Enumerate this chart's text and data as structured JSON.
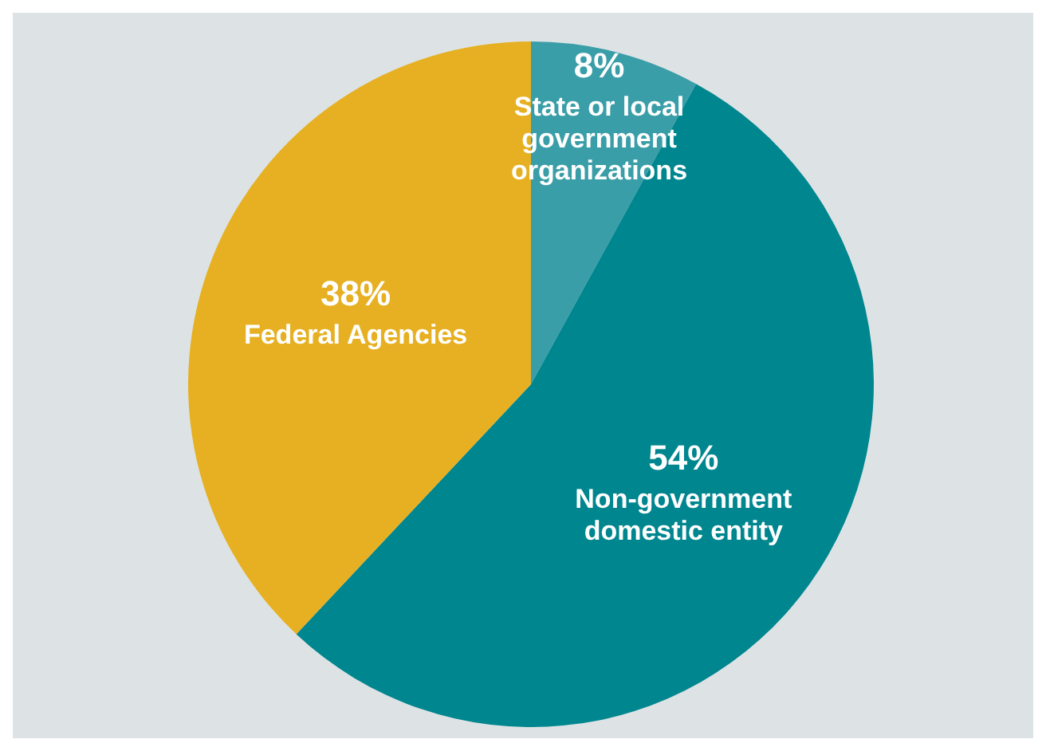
{
  "chart_data": {
    "type": "pie",
    "categories": [
      "State or local government organizations",
      "Non-government domestic entity",
      "Federal Agencies"
    ],
    "values": [
      8,
      54,
      38
    ],
    "value_labels": [
      "8%",
      "54%",
      "38%"
    ],
    "colors": [
      "#3a9ea8",
      "#00868f",
      "#e6b022"
    ]
  }
}
